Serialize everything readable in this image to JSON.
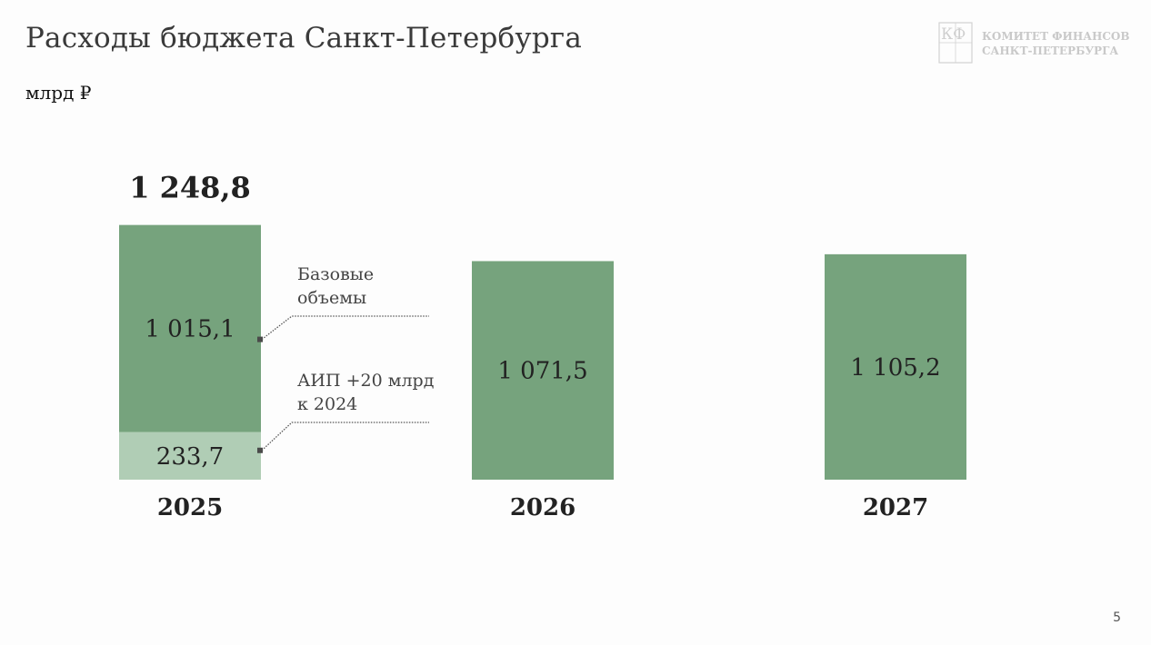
{
  "header": {
    "title": "Расходы бюджета Санкт-Петербурга",
    "unit": "млрд ₽"
  },
  "logo": {
    "mark": "КФ",
    "line1": "КОМИТЕТ ФИНАНСОВ",
    "line2": "САНКТ-ПЕТЕРБУРГА"
  },
  "page_number": "5",
  "colors": {
    "base": "#76a37d",
    "aip": "#b0cdb5",
    "text": "#222222",
    "annotation": "#444444"
  },
  "chart_data": {
    "type": "bar",
    "stacked": true,
    "categories": [
      "2025",
      "2026",
      "2027"
    ],
    "series": [
      {
        "key": "base",
        "values": [
          1015.1,
          1071.5,
          1105.2
        ],
        "labels": [
          "1 015,1",
          "1 071,5",
          "1 105,2"
        ]
      },
      {
        "key": "aip",
        "values": [
          233.7,
          null,
          null
        ],
        "labels": [
          "233,7",
          "",
          ""
        ]
      }
    ],
    "totals": [
      {
        "category": "2025",
        "value": 1248.8,
        "label": "1 248,8"
      }
    ],
    "annotations": [
      {
        "text": [
          "Базовые",
          "объемы"
        ],
        "series": "base"
      },
      {
        "text": [
          "АИП +20 млрд",
          "к 2024"
        ],
        "series": "aip"
      }
    ]
  }
}
